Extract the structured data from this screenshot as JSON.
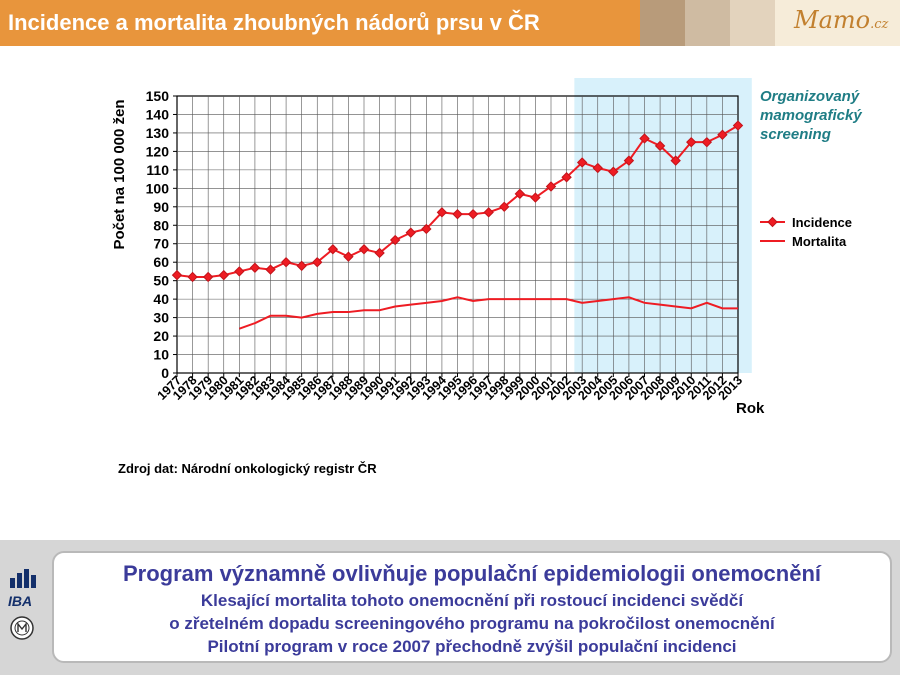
{
  "header": {
    "title": "Incidence a mortalita zhoubných nádorů prsu v ČR",
    "logo": "Mamo",
    "logo_suffix": ".cz"
  },
  "source_note": "Zdroj dat: Národní onkologický registr ČR",
  "screening_label": [
    "Organizovaný",
    "mamografický",
    "screening"
  ],
  "footer": {
    "headline": "Program významně ovlivňuje populační epidemiologii onemocnění",
    "lines": [
      "Klesající mortalita tohoto onemocnění při rostoucí incidenci svědčí",
      "o zřetelném dopadu screeningového programu na pokročilost onemocnění",
      "Pilotní program v roce 2007 přechodně zvýšil populační incidenci"
    ]
  },
  "side_logos": {
    "iba": "IBA",
    "mu": "MU"
  },
  "colors": {
    "header": "#e8953c",
    "series": "#ee1c23",
    "marker": "#c2141b",
    "highlight": "#d8f1fb",
    "footer_text": "#3b3b9a",
    "screening_text": "#1f7d85"
  },
  "chart_data": {
    "type": "line",
    "ylabel": "Počet  na 100 000 žen",
    "xlabel": "Rok",
    "ylim": [
      0,
      150
    ],
    "yticks": [
      0,
      10,
      20,
      30,
      40,
      50,
      60,
      70,
      80,
      90,
      100,
      110,
      120,
      130,
      140,
      150
    ],
    "grid": true,
    "legend_position": "right",
    "highlight_range": [
      "2003",
      "2013"
    ],
    "categories": [
      "1977",
      "1978",
      "1979",
      "1980",
      "1981",
      "1982",
      "1983",
      "1984",
      "1985",
      "1986",
      "1987",
      "1988",
      "1989",
      "1990",
      "1991",
      "1992",
      "1993",
      "1994",
      "1995",
      "1996",
      "1997",
      "1998",
      "1999",
      "2000",
      "2001",
      "2002",
      "2003",
      "2004",
      "2005",
      "2006",
      "2007",
      "2008",
      "2009",
      "2010",
      "2011",
      "2012",
      "2013"
    ],
    "series": [
      {
        "name": "Incidence",
        "marker": "diamond",
        "values": [
          53,
          52,
          52,
          53,
          55,
          57,
          56,
          60,
          58,
          60,
          67,
          63,
          67,
          65,
          72,
          76,
          78,
          87,
          86,
          86,
          87,
          90,
          97,
          95,
          101,
          106,
          114,
          111,
          109,
          115,
          127,
          123,
          115,
          125,
          125,
          129,
          134
        ]
      },
      {
        "name": "Mortalita",
        "marker": "none",
        "values": [
          null,
          null,
          null,
          null,
          24,
          27,
          31,
          31,
          30,
          32,
          33,
          33,
          34,
          34,
          36,
          37,
          38,
          39,
          41,
          39,
          40,
          40,
          40,
          40,
          40,
          40,
          38,
          39,
          40,
          41,
          38,
          37,
          36,
          35,
          38,
          35,
          35
        ]
      }
    ]
  }
}
